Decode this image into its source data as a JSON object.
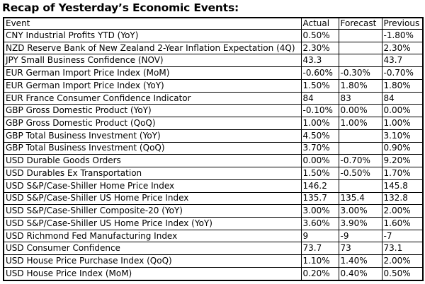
{
  "title": "Recap of Yesterday’s Economic Events:",
  "table": {
    "columns": [
      "Event",
      "Actual",
      "Forecast",
      "Previous"
    ],
    "rows": [
      [
        "CNY Industrial Profits YTD (YoY)",
        "0.50%",
        "",
        "-1.80%"
      ],
      [
        "NZD Reserve Bank of New Zealand 2-Year Inflation Expectation (4Q)",
        "2.30%",
        "",
        "2.30%"
      ],
      [
        "JPY Small Business Confidence (NOV)",
        "43.3",
        "",
        "43.7"
      ],
      [
        "EUR German Import Price Index (MoM)",
        "-0.60%",
        "-0.30%",
        "-0.70%"
      ],
      [
        "EUR German Import Price Index (YoY)",
        "1.50%",
        "1.80%",
        "1.80%"
      ],
      [
        "EUR France Consumer Confidence Indicator",
        "84",
        "83",
        "84"
      ],
      [
        "GBP Gross Domestic Product (YoY)",
        "-0.10%",
        "0.00%",
        "0.00%"
      ],
      [
        "GBP Gross Domestic Product (QoQ)",
        "1.00%",
        "1.00%",
        "1.00%"
      ],
      [
        "GBP Total Business Investment (YoY)",
        "4.50%",
        "",
        "3.10%"
      ],
      [
        "GBP Total Business Investment (QoQ)",
        "3.70%",
        "",
        "0.90%"
      ],
      [
        "USD Durable Goods Orders",
        "0.00%",
        "-0.70%",
        "9.20%"
      ],
      [
        "USD Durables Ex Transportation",
        "1.50%",
        "-0.50%",
        "1.70%"
      ],
      [
        "USD S&P/Case-Shiller Home Price Index",
        "146.2",
        "",
        "145.8"
      ],
      [
        "USD S&P/Case-Shiller US Home Price Index",
        "135.7",
        "135.4",
        "132.8"
      ],
      [
        "USD S&P/Case-Shiller Composite-20 (YoY)",
        "3.00%",
        "3.00%",
        "2.00%"
      ],
      [
        "USD S&P/Case-Shiller US Home Price Index (YoY)",
        "3.60%",
        "3.90%",
        "1.60%"
      ],
      [
        "USD Richmond Fed Manufacturing Index",
        "9",
        "-9",
        "-7"
      ],
      [
        "USD Consumer Confidence",
        "73.7",
        "73",
        "73.1"
      ],
      [
        "USD House Price Purchase Index (QoQ)",
        "1.10%",
        "1.40%",
        "2.00%"
      ],
      [
        "USD House Price Index (MoM)",
        "0.20%",
        "0.40%",
        "0.50%"
      ]
    ]
  },
  "colors": {
    "text": "#000000",
    "border": "#000000",
    "background": "#ffffff"
  }
}
